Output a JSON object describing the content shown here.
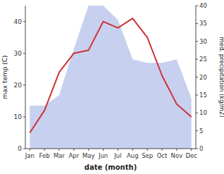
{
  "chart_data": {
    "type": "line",
    "xlabel": "date (month)",
    "ylabel": "max temp (C)",
    "y2label": "med. precipitation (kg/m2)",
    "categories": [
      "Jan",
      "Feb",
      "Mar",
      "Apr",
      "May",
      "Jun",
      "Jul",
      "Aug",
      "Sep",
      "Oct",
      "Nov",
      "Dec"
    ],
    "series": [
      {
        "type": "area",
        "axis": "y2",
        "color": "#c8d0f0",
        "values": [
          12,
          12,
          15,
          28,
          40,
          40,
          36,
          25,
          24,
          24,
          25,
          14
        ]
      },
      {
        "type": "line",
        "color": "#cc3333",
        "values": [
          5,
          12,
          24,
          30,
          31,
          40,
          38,
          41,
          35,
          23,
          14,
          10
        ]
      }
    ],
    "ylim": [
      0,
      45
    ],
    "yticks": [
      0,
      10,
      20,
      30,
      40
    ],
    "y2lim": [
      0,
      40
    ],
    "y2ticks": [
      0,
      5,
      10,
      15,
      20,
      25,
      30,
      35,
      40
    ]
  }
}
